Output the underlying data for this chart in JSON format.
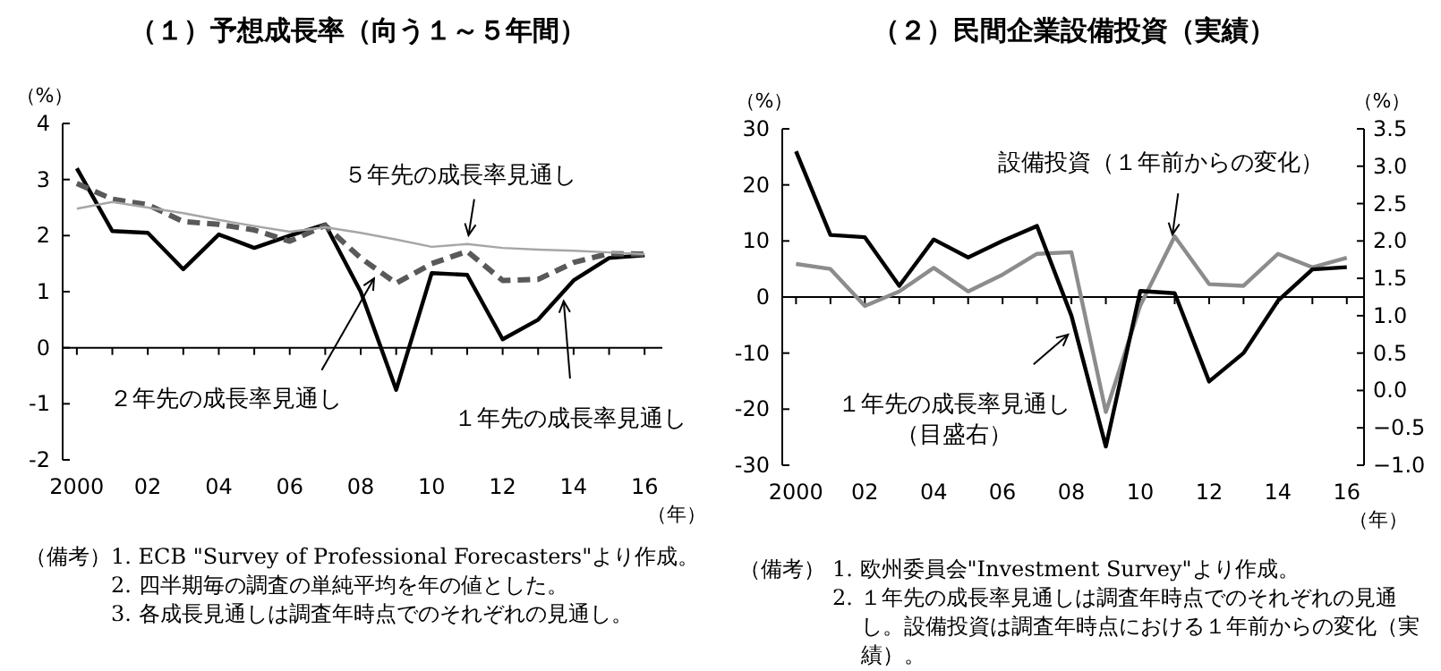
{
  "chart_data": [
    {
      "type": "line",
      "title": "（１）予想成長率（向う１～５年間）",
      "ylabel": "（%）",
      "xlabel": "（年）",
      "x": [
        2000,
        2001,
        2002,
        2003,
        2004,
        2005,
        2006,
        2007,
        2008,
        2009,
        2010,
        2011,
        2012,
        2013,
        2014,
        2015,
        2016
      ],
      "xlim": [
        1999.6,
        2016.5
      ],
      "xticks": [
        {
          "value": 2000,
          "label": "2000"
        },
        {
          "value": 2001,
          "label": null
        },
        {
          "value": 2002,
          "label": "02"
        },
        {
          "value": 2003,
          "label": null
        },
        {
          "value": 2004,
          "label": "04"
        },
        {
          "value": 2005,
          "label": null
        },
        {
          "value": 2006,
          "label": "06"
        },
        {
          "value": 2007,
          "label": null
        },
        {
          "value": 2008,
          "label": "08"
        },
        {
          "value": 2009,
          "label": null
        },
        {
          "value": 2010,
          "label": "10"
        },
        {
          "value": 2011,
          "label": null
        },
        {
          "value": 2012,
          "label": "12"
        },
        {
          "value": 2013,
          "label": null
        },
        {
          "value": 2014,
          "label": "14"
        },
        {
          "value": 2015,
          "label": null
        },
        {
          "value": 2016,
          "label": "16"
        }
      ],
      "ylim": [
        -2,
        4
      ],
      "yticks": [
        -2,
        -1,
        0,
        1,
        2,
        3,
        4
      ],
      "series": [
        {
          "name": "１年先の成長率見通し",
          "color": "#000000",
          "line_style": "solid",
          "values": [
            3.2,
            2.08,
            2.05,
            1.4,
            2.02,
            1.78,
            2.0,
            2.2,
            1.0,
            -0.75,
            1.33,
            1.3,
            0.15,
            0.5,
            1.2,
            1.6,
            1.65
          ]
        },
        {
          "name": "２年先の成長率見通し",
          "color": "#595959",
          "line_style": "dashed",
          "values": [
            2.93,
            2.65,
            2.55,
            2.25,
            2.2,
            2.1,
            1.9,
            2.18,
            1.6,
            1.15,
            1.5,
            1.72,
            1.2,
            1.22,
            1.52,
            1.68,
            1.67
          ]
        },
        {
          "name": "５年先の成長率見通し",
          "color": "#a6a6a6",
          "line_style": "solid",
          "values": [
            2.48,
            2.6,
            2.5,
            2.4,
            2.28,
            2.17,
            2.07,
            2.15,
            2.05,
            1.93,
            1.8,
            1.85,
            1.78,
            1.75,
            1.73,
            1.7,
            1.67
          ]
        }
      ],
      "annotations": [
        "（備考）",
        "1. ECB \"Survey of Professional Forecasters\"より作成。",
        "2. 四半期毎の調査の単純平均を年の値とした。",
        "3. 各成長見通しは調査年時点でのそれぞれの見通し。"
      ]
    },
    {
      "type": "line",
      "title": "（２）民間企業設備投資（実績）",
      "ylabel": "（%）",
      "y2label": "（%）",
      "xlabel": "（年）",
      "x": [
        2000,
        2001,
        2002,
        2003,
        2004,
        2005,
        2006,
        2007,
        2008,
        2009,
        2010,
        2011,
        2012,
        2013,
        2014,
        2015,
        2016
      ],
      "xlim": [
        1999.6,
        2016.5
      ],
      "xticks": [
        {
          "value": 2000,
          "label": "2000"
        },
        {
          "value": 2001,
          "label": null
        },
        {
          "value": 2002,
          "label": "02"
        },
        {
          "value": 2003,
          "label": null
        },
        {
          "value": 2004,
          "label": "04"
        },
        {
          "value": 2005,
          "label": null
        },
        {
          "value": 2006,
          "label": "06"
        },
        {
          "value": 2007,
          "label": null
        },
        {
          "value": 2008,
          "label": "08"
        },
        {
          "value": 2009,
          "label": null
        },
        {
          "value": 2010,
          "label": "10"
        },
        {
          "value": 2011,
          "label": null
        },
        {
          "value": 2012,
          "label": "12"
        },
        {
          "value": 2013,
          "label": null
        },
        {
          "value": 2014,
          "label": "14"
        },
        {
          "value": 2015,
          "label": null
        },
        {
          "value": 2016,
          "label": "16"
        }
      ],
      "ylim": [
        -30,
        30
      ],
      "yticks": [
        -30,
        -20,
        -10,
        0,
        10,
        20,
        30
      ],
      "y2lim": [
        -1.0,
        3.5
      ],
      "y2ticks": [
        {
          "value": -1.0,
          "label": "−1.0"
        },
        {
          "value": -0.5,
          "label": "−0.5"
        },
        {
          "value": 0.0,
          "label": "0.0"
        },
        {
          "value": 0.5,
          "label": "0.5"
        },
        {
          "value": 1.0,
          "label": "1.0"
        },
        {
          "value": 1.5,
          "label": "1.5"
        },
        {
          "value": 2.0,
          "label": "2.0"
        },
        {
          "value": 2.5,
          "label": "2.5"
        },
        {
          "value": 3.0,
          "label": "3.0"
        },
        {
          "value": 3.5,
          "label": "3.5"
        }
      ],
      "series": [
        {
          "name": "設備投資（１年前からの変化）",
          "color": "#8c8c8c",
          "line_style": "solid",
          "values": [
            5.9,
            5.0,
            -1.6,
            1.0,
            5.2,
            1.0,
            4.0,
            7.7,
            8.0,
            -20.5,
            -1.5,
            10.8,
            2.3,
            2.0,
            7.7,
            5.3,
            7.0
          ]
        },
        {
          "name": "１年先の成長率見通し（目盛右）",
          "color": "#000000",
          "line_style": "solid",
          "axis": "y2",
          "values": [
            3.2,
            2.08,
            2.05,
            1.4,
            2.02,
            1.78,
            2.0,
            2.2,
            1.0,
            -0.75,
            1.33,
            1.3,
            0.12,
            0.5,
            1.2,
            1.62,
            1.65
          ]
        }
      ],
      "annotations": [
        "（備考）",
        "1. 欧州委員会\"Investment Survey\"より作成。",
        "2. １年先の成長率見通しは調査年時点でのそれぞれの見通し。設備投資は調査年時点における１年前からの変化（実績）。"
      ]
    }
  ]
}
